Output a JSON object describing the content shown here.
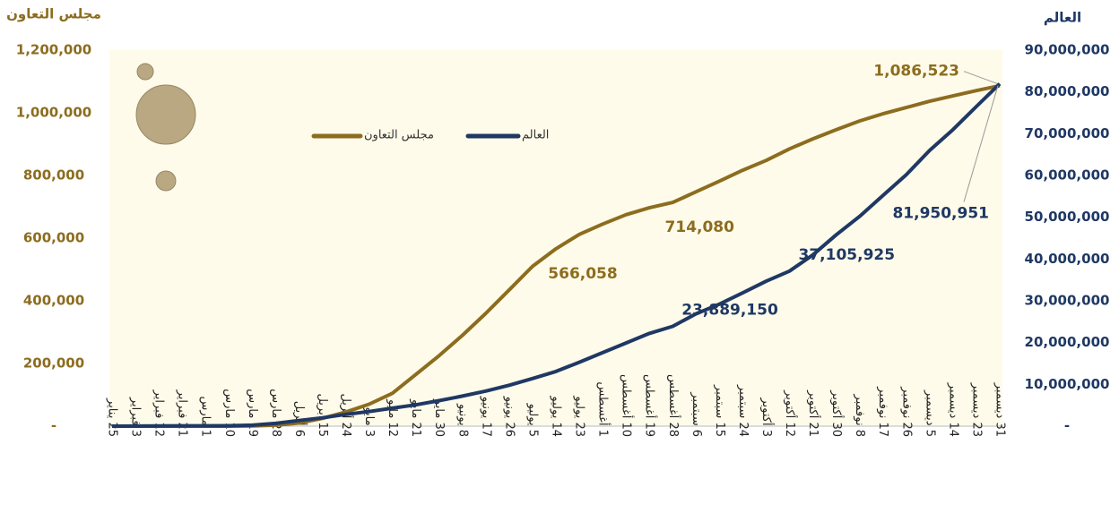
{
  "chart_data": {
    "type": "line",
    "y_title": "مجلس التعاون",
    "y2_title": "العالم",
    "categories": [
      "25 يناير",
      "3 فبراير",
      "12 فبراير",
      "21 فبراير",
      "1 مارس",
      "10 مارس",
      "19 مارس",
      "28 مارس",
      "6 أبريل",
      "15 أبريل",
      "24 أبريل",
      "3 مايو",
      "12 مايو",
      "21 مايو",
      "30 مايو",
      "8 يونيو",
      "17 يونيو",
      "26 يونيو",
      "5 يوليو",
      "14 يوليو",
      "23 يوليو",
      "1 أغسطس",
      "10 أغسطس",
      "19 أغسطس",
      "28 أغسطس",
      "6 سبتمبر",
      "15 سبتمبر",
      "24 سبتمبر",
      "3 أكتوبر",
      "12 أكتوبر",
      "21 أكتوبر",
      "30 أكتوبر",
      "8 نوفمبر",
      "17 نوفمبر",
      "26 نوفمبر",
      "5 ديسمبر",
      "14 ديسمبر",
      "23 ديسمبر",
      "31 ديسمبر"
    ],
    "series": [
      {
        "name": "مجلس التعاون",
        "color": "#8c6d1f",
        "axis": "y",
        "values": [
          0,
          0,
          0,
          0,
          0,
          0,
          500,
          3000,
          10000,
          25000,
          45000,
          70000,
          105000,
          165000,
          225000,
          290000,
          360000,
          435000,
          510000,
          566058,
          612000,
          645000,
          675000,
          697000,
          714080,
          748000,
          782000,
          817000,
          848000,
          885000,
          917000,
          946000,
          974000,
          997000,
          1017000,
          1037000,
          1054000,
          1071000,
          1086523
        ],
        "value_labels": [
          null,
          null,
          null,
          null,
          null,
          null,
          null,
          null,
          null,
          null,
          null,
          null,
          null,
          null,
          null,
          null,
          null,
          null,
          null,
          "566,058",
          null,
          null,
          null,
          null,
          "714,080",
          null,
          null,
          null,
          null,
          null,
          null,
          null,
          null,
          null,
          null,
          null,
          null,
          null,
          "1,086,523"
        ]
      },
      {
        "name": "العالم",
        "color": "#1f3864",
        "axis": "y2",
        "values": [
          1000,
          20000,
          50000,
          80000,
          90000,
          110000,
          240000,
          660000,
          1350000,
          2000000,
          2800000,
          3500000,
          4300000,
          5100000,
          6100000,
          7200000,
          8400000,
          9800000,
          11400000,
          13100000,
          15300000,
          17600000,
          19900000,
          22200000,
          23889150,
          26900000,
          29200000,
          31900000,
          34700000,
          37105925,
          41000000,
          45800000,
          50200000,
          55200000,
          60200000,
          66000000,
          71000000,
          76500000,
          81950951
        ],
        "value_labels": [
          null,
          null,
          null,
          null,
          null,
          null,
          null,
          null,
          null,
          null,
          null,
          null,
          null,
          null,
          null,
          null,
          null,
          null,
          null,
          null,
          null,
          null,
          null,
          null,
          "23,889,150",
          null,
          null,
          null,
          null,
          "37,105,925",
          null,
          null,
          null,
          null,
          null,
          null,
          null,
          null,
          "81,950,951"
        ]
      }
    ],
    "ylim": [
      0,
      1200000
    ],
    "yticks": [
      {
        "value": 0,
        "label": "-"
      },
      {
        "value": 200000,
        "label": "200,000"
      },
      {
        "value": 400000,
        "label": "400,000"
      },
      {
        "value": 600000,
        "label": "600,000"
      },
      {
        "value": 800000,
        "label": "800,000"
      },
      {
        "value": 1000000,
        "label": "1,000,000"
      },
      {
        "value": 1200000,
        "label": "1,200,000"
      }
    ],
    "y2lim": [
      0,
      90000000
    ],
    "y2ticks": [
      {
        "value": 0,
        "label": "-"
      },
      {
        "value": 10000000,
        "label": "10,000,000"
      },
      {
        "value": 20000000,
        "label": "20,000,000"
      },
      {
        "value": 30000000,
        "label": "30,000,000"
      },
      {
        "value": 40000000,
        "label": "40,000,000"
      },
      {
        "value": 50000000,
        "label": "50,000,000"
      },
      {
        "value": 60000000,
        "label": "60,000,000"
      },
      {
        "value": 70000000,
        "label": "70,000,000"
      },
      {
        "value": 80000000,
        "label": "80,000,000"
      },
      {
        "value": 90000000,
        "label": "90,000,000"
      }
    ],
    "legend": "top-left",
    "grid": false
  }
}
